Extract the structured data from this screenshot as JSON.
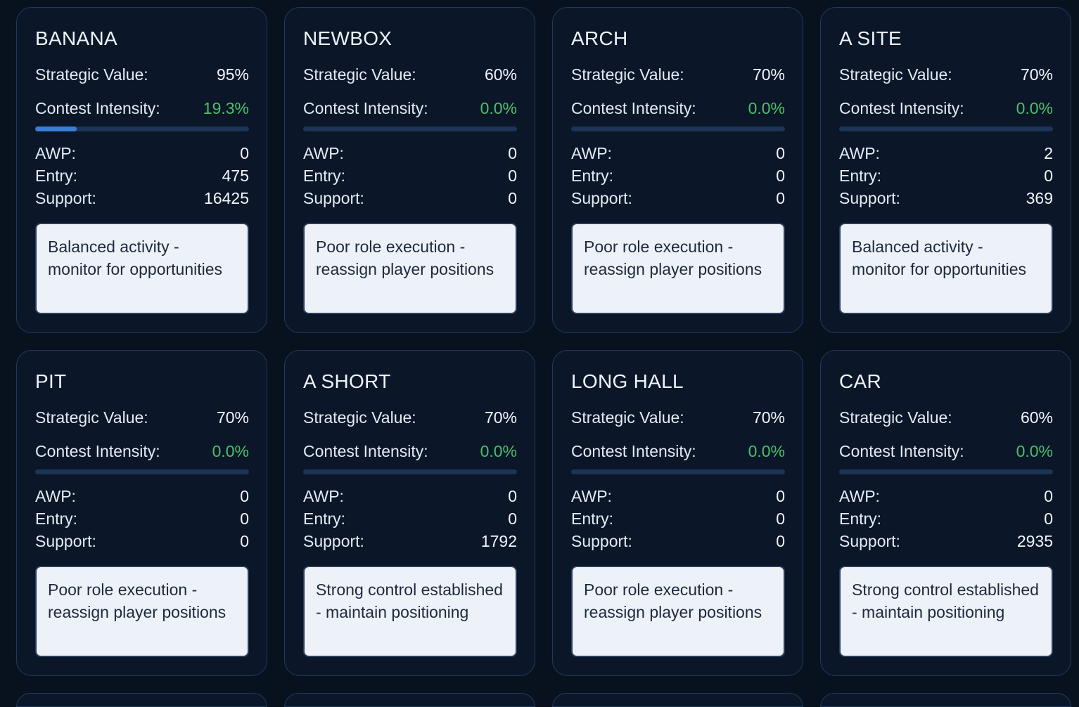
{
  "labels": {
    "strategic_value": "Strategic Value:",
    "contest_intensity": "Contest Intensity:",
    "awp": "AWP:",
    "entry": "Entry:",
    "support": "Support:"
  },
  "colors": {
    "background": "#08121f",
    "card": "#0b1628",
    "card_border": "#1f3a5c",
    "intensity_text": "#4cc06a",
    "bar_fill": "#3a7fd4",
    "bar_track": "#1c3455",
    "recommendation_bg": "#edf2f8"
  },
  "zones": [
    {
      "name": "BANANA",
      "strategic_value": "95%",
      "contest_intensity": "19.3%",
      "intensity_fraction": 0.193,
      "awp": "0",
      "entry": "475",
      "support": "16425",
      "recommendation": "Balanced activity - monitor for opportunities"
    },
    {
      "name": "NEWBOX",
      "strategic_value": "60%",
      "contest_intensity": "0.0%",
      "intensity_fraction": 0,
      "awp": "0",
      "entry": "0",
      "support": "0",
      "recommendation": "Poor role execution - reassign player positions"
    },
    {
      "name": "ARCH",
      "strategic_value": "70%",
      "contest_intensity": "0.0%",
      "intensity_fraction": 0,
      "awp": "0",
      "entry": "0",
      "support": "0",
      "recommendation": "Poor role execution - reassign player positions"
    },
    {
      "name": "A SITE",
      "strategic_value": "70%",
      "contest_intensity": "0.0%",
      "intensity_fraction": 0,
      "awp": "2",
      "entry": "0",
      "support": "369",
      "recommendation": "Balanced activity - monitor for opportunities"
    },
    {
      "name": "PIT",
      "strategic_value": "70%",
      "contest_intensity": "0.0%",
      "intensity_fraction": 0,
      "awp": "0",
      "entry": "0",
      "support": "0",
      "recommendation": "Poor role execution - reassign player positions"
    },
    {
      "name": "A SHORT",
      "strategic_value": "70%",
      "contest_intensity": "0.0%",
      "intensity_fraction": 0,
      "awp": "0",
      "entry": "0",
      "support": "1792",
      "recommendation": "Strong control established - maintain positioning"
    },
    {
      "name": "LONG HALL",
      "strategic_value": "70%",
      "contest_intensity": "0.0%",
      "intensity_fraction": 0,
      "awp": "0",
      "entry": "0",
      "support": "0",
      "recommendation": "Poor role execution - reassign player positions"
    },
    {
      "name": "CAR",
      "strategic_value": "60%",
      "contest_intensity": "0.0%",
      "intensity_fraction": 0,
      "awp": "0",
      "entry": "0",
      "support": "2935",
      "recommendation": "Strong control established - maintain positioning"
    }
  ]
}
